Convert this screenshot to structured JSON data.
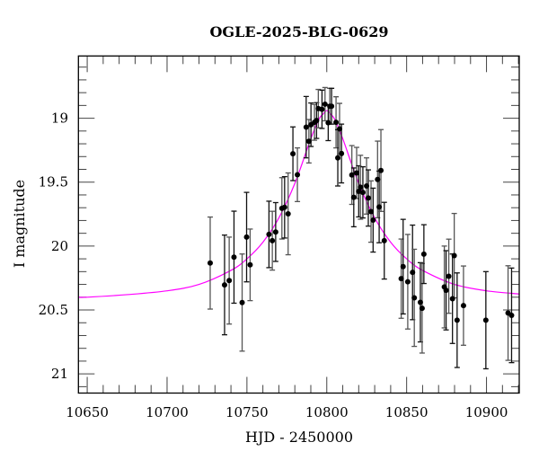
{
  "chart_data": {
    "type": "scatter",
    "title": "OGLE-2025-BLG-0629",
    "xlabel": "HJD - 2450000",
    "ylabel": "I magnitude",
    "xlim": [
      10644.5,
      10920.5
    ],
    "ylim": [
      18.513,
      21.15
    ],
    "y_inverted": true,
    "grid": false,
    "x_ticks": [
      10650,
      10700,
      10750,
      10800,
      10850,
      10900
    ],
    "x_tick_labels": [
      "10650",
      "10700",
      "10750",
      "10800",
      "10850",
      "10900"
    ],
    "y_ticks": [
      19,
      19.5,
      20,
      20.5,
      21
    ],
    "y_tick_labels": [
      "19",
      "19.5",
      "20",
      "20.5",
      "21"
    ],
    "x_minor_step": 10,
    "y_minor_step": 0.1,
    "colors": {
      "points": "#000000",
      "error_bars": "#555555",
      "model": "#ff00ff",
      "frame": "#000000"
    },
    "points": {
      "x": [
        10727.0,
        10736.0,
        10738.9,
        10741.9,
        10747.0,
        10749.8,
        10752.0,
        10763.8,
        10765.9,
        10768.0,
        10771.9,
        10773.6,
        10775.8,
        10778.8,
        10781.6,
        10787.1,
        10788.8,
        10790.1,
        10792.3,
        10793.6,
        10794.7,
        10797.0,
        10798.9,
        10800.9,
        10801.9,
        10803.0,
        10805.8,
        10806.9,
        10808.0,
        10809.2,
        10815.7,
        10816.9,
        10818.7,
        10820.0,
        10821.1,
        10822.6,
        10824.9,
        10826.0,
        10827.7,
        10829.0,
        10831.8,
        10832.8,
        10833.9,
        10836.0,
        10846.6,
        10847.8,
        10850.7,
        10853.7,
        10854.8,
        10858.6,
        10859.7,
        10860.8,
        10873.6,
        10874.7,
        10876.4,
        10878.7,
        10879.8,
        10881.6,
        10885.6,
        10899.6,
        10913.5,
        10915.7
      ],
      "y": [
        20.133,
        20.304,
        20.27,
        20.087,
        20.442,
        19.93,
        20.147,
        19.909,
        19.958,
        19.89,
        19.705,
        19.697,
        19.748,
        19.278,
        19.442,
        19.07,
        19.18,
        19.051,
        19.032,
        19.018,
        18.925,
        18.93,
        18.89,
        19.035,
        18.906,
        18.906,
        19.032,
        19.31,
        19.084,
        19.276,
        19.444,
        19.619,
        19.428,
        19.572,
        19.54,
        19.58,
        19.53,
        19.624,
        19.73,
        19.797,
        19.479,
        19.694,
        19.409,
        19.958,
        20.255,
        20.161,
        20.279,
        20.206,
        20.405,
        20.44,
        20.487,
        20.063,
        20.32,
        20.346,
        20.236,
        20.412,
        20.075,
        20.58,
        20.466,
        20.58,
        20.524,
        20.542
      ],
      "err": [
        0.36,
        0.39,
        0.34,
        0.36,
        0.38,
        0.35,
        0.28,
        0.26,
        0.23,
        0.23,
        0.24,
        0.24,
        0.32,
        0.21,
        0.21,
        0.24,
        0.17,
        0.17,
        0.14,
        0.14,
        0.15,
        0.15,
        0.13,
        0.14,
        0.14,
        0.14,
        0.2,
        0.22,
        0.2,
        0.23,
        0.23,
        0.23,
        0.2,
        0.2,
        0.25,
        0.2,
        0.22,
        0.22,
        0.24,
        0.25,
        0.3,
        0.28,
        0.32,
        0.3,
        0.31,
        0.37,
        0.37,
        0.37,
        0.38,
        0.31,
        0.35,
        0.23,
        0.32,
        0.31,
        0.29,
        0.35,
        0.33,
        0.37,
        0.31,
        0.38,
        0.37,
        0.37
      ]
    },
    "model": {
      "x": [
        10644.5,
        10650,
        10675,
        10700,
        10720,
        10740,
        10750,
        10760,
        10770,
        10780,
        10790,
        10795,
        10797.5,
        10800,
        10802.5,
        10805,
        10810,
        10820,
        10830,
        10840,
        10850,
        10860,
        10880,
        10900,
        10920.5
      ],
      "y": [
        20.4,
        20.4,
        20.38,
        20.35,
        20.3,
        20.19,
        20.1,
        19.97,
        19.78,
        19.51,
        19.16,
        19.01,
        18.97,
        18.94,
        18.97,
        19.01,
        19.16,
        19.51,
        19.78,
        19.97,
        20.1,
        20.19,
        20.3,
        20.35,
        20.375
      ]
    }
  }
}
